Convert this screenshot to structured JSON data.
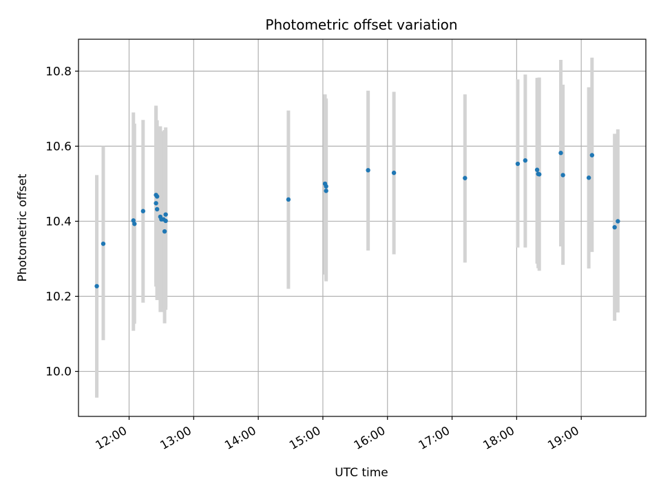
{
  "chart_data": {
    "type": "scatter",
    "title": "Photometric offset variation",
    "xlabel": "UTC time",
    "ylabel": "Photometric offset",
    "xlim": [
      "11:13",
      "20:00"
    ],
    "ylim": [
      9.88,
      10.885
    ],
    "grid": true,
    "x_ticks": [
      "12:00",
      "13:00",
      "14:00",
      "15:00",
      "16:00",
      "17:00",
      "18:00",
      "19:00"
    ],
    "y_ticks": [
      10.0,
      10.2,
      10.4,
      10.6,
      10.8
    ],
    "y_tick_labels": [
      "10.0",
      "10.2",
      "10.4",
      "10.6",
      "10.8"
    ],
    "series": [
      {
        "marker_color": "#1f77b4",
        "errorbar_color": "#d3d3d3",
        "points": [
          {
            "x": "11:30",
            "y": 10.227,
            "ylow": 9.93,
            "yhigh": 10.523
          },
          {
            "x": "11:36",
            "y": 10.34,
            "ylow": 10.083,
            "yhigh": 10.6
          },
          {
            "x": "12:04",
            "y": 10.402,
            "ylow": 10.108,
            "yhigh": 10.69
          },
          {
            "x": "12:05",
            "y": 10.393,
            "ylow": 10.127,
            "yhigh": 10.66
          },
          {
            "x": "12:13",
            "y": 10.427,
            "ylow": 10.183,
            "yhigh": 10.67
          },
          {
            "x": "12:25",
            "y": 10.47,
            "ylow": 10.236,
            "yhigh": 10.708
          },
          {
            "x": "12:25",
            "y": 10.448,
            "ylow": 10.226,
            "yhigh": 10.703
          },
          {
            "x": "12:26",
            "y": 10.466,
            "ylow": 10.194,
            "yhigh": 10.669
          },
          {
            "x": "12:26",
            "y": 10.432,
            "ylow": 10.19,
            "yhigh": 10.652
          },
          {
            "x": "12:29",
            "y": 10.412,
            "ylow": 10.158,
            "yhigh": 10.653
          },
          {
            "x": "12:30",
            "y": 10.405,
            "ylow": 10.168,
            "yhigh": 10.64
          },
          {
            "x": "12:32",
            "y": 10.405,
            "ylow": 10.158,
            "yhigh": 10.64
          },
          {
            "x": "12:33",
            "y": 10.373,
            "ylow": 10.128,
            "yhigh": 10.643
          },
          {
            "x": "12:34",
            "y": 10.418,
            "ylow": 10.164,
            "yhigh": 10.65
          },
          {
            "x": "12:34",
            "y": 10.401,
            "ylow": 10.171,
            "yhigh": 10.642
          },
          {
            "x": "14:28",
            "y": 10.458,
            "ylow": 10.22,
            "yhigh": 10.695
          },
          {
            "x": "15:02",
            "y": 10.5,
            "ylow": 10.258,
            "yhigh": 10.738
          },
          {
            "x": "15:03",
            "y": 10.493,
            "ylow": 10.24,
            "yhigh": 10.727
          },
          {
            "x": "15:03",
            "y": 10.481,
            "ylow": 10.245,
            "yhigh": 10.72
          },
          {
            "x": "15:42",
            "y": 10.536,
            "ylow": 10.322,
            "yhigh": 10.748
          },
          {
            "x": "16:06",
            "y": 10.529,
            "ylow": 10.312,
            "yhigh": 10.745
          },
          {
            "x": "17:12",
            "y": 10.515,
            "ylow": 10.29,
            "yhigh": 10.738
          },
          {
            "x": "18:01",
            "y": 10.553,
            "ylow": 10.33,
            "yhigh": 10.778
          },
          {
            "x": "18:08",
            "y": 10.562,
            "ylow": 10.33,
            "yhigh": 10.791
          },
          {
            "x": "18:19",
            "y": 10.537,
            "ylow": 10.287,
            "yhigh": 10.782
          },
          {
            "x": "18:20",
            "y": 10.526,
            "ylow": 10.275,
            "yhigh": 10.782
          },
          {
            "x": "18:21",
            "y": 10.525,
            "ylow": 10.268,
            "yhigh": 10.783
          },
          {
            "x": "18:41",
            "y": 10.582,
            "ylow": 10.333,
            "yhigh": 10.83
          },
          {
            "x": "18:43",
            "y": 10.523,
            "ylow": 10.284,
            "yhigh": 10.764
          },
          {
            "x": "19:07",
            "y": 10.516,
            "ylow": 10.274,
            "yhigh": 10.757
          },
          {
            "x": "19:10",
            "y": 10.576,
            "ylow": 10.318,
            "yhigh": 10.836
          },
          {
            "x": "19:31",
            "y": 10.384,
            "ylow": 10.135,
            "yhigh": 10.633
          },
          {
            "x": "19:34",
            "y": 10.4,
            "ylow": 10.157,
            "yhigh": 10.645
          }
        ]
      }
    ]
  }
}
